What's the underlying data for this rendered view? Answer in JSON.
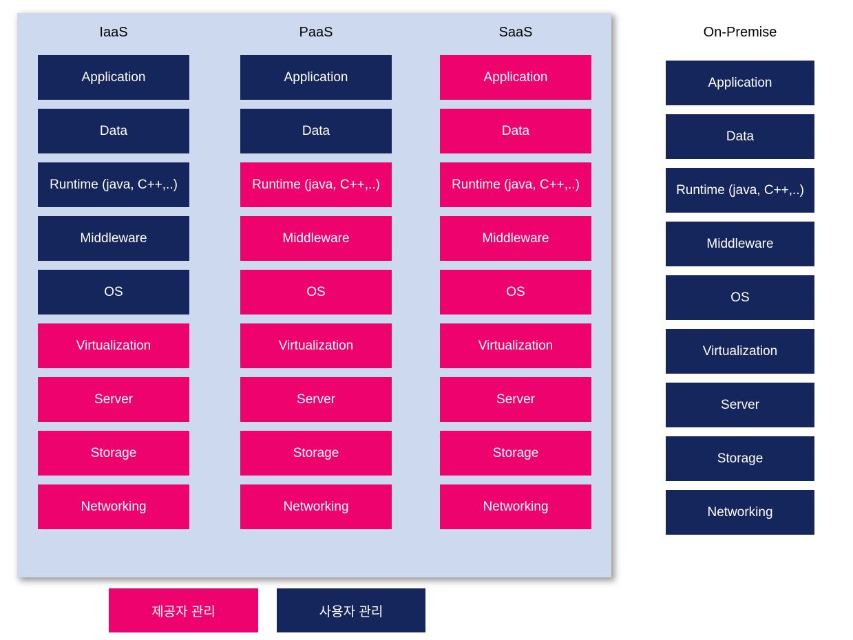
{
  "colors": {
    "board_background": "#ccd9ee",
    "provider_managed": "#ee026e",
    "user_managed": "#15265c",
    "layer_text": "#ffffff",
    "header_text": "#000000"
  },
  "layers": [
    "Application",
    "Data",
    "Runtime (java, C++,..)",
    "Middleware",
    "OS",
    "Virtualization",
    "Server",
    "Storage",
    "Networking"
  ],
  "layer_slugs": [
    "application",
    "data",
    "runtime",
    "middleware",
    "os",
    "virtualization",
    "server",
    "storage",
    "networking"
  ],
  "columns": [
    {
      "id": "iaas",
      "label": "IaaS",
      "on_board": true,
      "ownership": [
        "user",
        "user",
        "user",
        "user",
        "user",
        "provider",
        "provider",
        "provider",
        "provider"
      ]
    },
    {
      "id": "paas",
      "label": "PaaS",
      "on_board": true,
      "ownership": [
        "user",
        "user",
        "provider",
        "provider",
        "provider",
        "provider",
        "provider",
        "provider",
        "provider"
      ]
    },
    {
      "id": "saas",
      "label": "SaaS",
      "on_board": true,
      "ownership": [
        "provider",
        "provider",
        "provider",
        "provider",
        "provider",
        "provider",
        "provider",
        "provider",
        "provider"
      ]
    },
    {
      "id": "on-premise",
      "label": "On-Premise",
      "on_board": false,
      "ownership": [
        "user",
        "user",
        "user",
        "user",
        "user",
        "user",
        "user",
        "user",
        "user"
      ]
    }
  ],
  "legend": [
    {
      "id": "provider-managed",
      "type": "provider",
      "label": "제공자 관리"
    },
    {
      "id": "user-managed",
      "type": "user",
      "label": "사용자 관리"
    }
  ]
}
